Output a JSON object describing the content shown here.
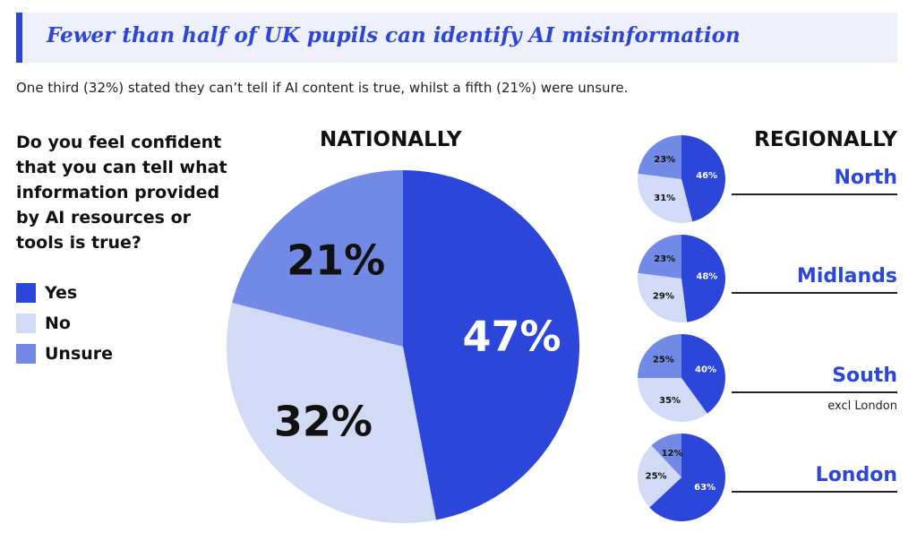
{
  "header": {
    "title": "Fewer than half of UK pupils can identify AI misinformation",
    "subtitle": "One third (32%) stated they can’t tell if AI content is true, whilst a fifth (21%) were unsure."
  },
  "question": "Do you feel confident that you can tell what information provided by AI resources or tools is true?",
  "legend": [
    {
      "label": "Yes",
      "color": "#2b46d9"
    },
    {
      "label": "No",
      "color": "#d2daf6"
    },
    {
      "label": "Unsure",
      "color": "#7289e6"
    }
  ],
  "headings": {
    "national": "NATIONALLY",
    "regional": "REGIONALLY"
  },
  "regions": {
    "north": {
      "name": "North"
    },
    "midlands": {
      "name": "Midlands"
    },
    "south": {
      "name": "South",
      "note": "excl London"
    },
    "london": {
      "name": "London"
    }
  },
  "chart_data": [
    {
      "type": "pie",
      "title": "NATIONALLY",
      "categories": [
        "Yes",
        "No",
        "Unsure"
      ],
      "values": [
        47,
        32,
        21
      ],
      "labels": [
        "47%",
        "32%",
        "21%"
      ]
    },
    {
      "type": "pie",
      "title": "North",
      "categories": [
        "Yes",
        "No",
        "Unsure"
      ],
      "values": [
        46,
        31,
        23
      ],
      "labels": [
        "46%",
        "31%",
        "23%"
      ]
    },
    {
      "type": "pie",
      "title": "Midlands",
      "categories": [
        "Yes",
        "No",
        "Unsure"
      ],
      "values": [
        48,
        29,
        23
      ],
      "labels": [
        "48%",
        "29%",
        "23%"
      ]
    },
    {
      "type": "pie",
      "title": "South",
      "categories": [
        "Yes",
        "No",
        "Unsure"
      ],
      "values": [
        40,
        35,
        25
      ],
      "labels": [
        "40%",
        "35%",
        "25%"
      ]
    },
    {
      "type": "pie",
      "title": "London",
      "categories": [
        "Yes",
        "No",
        "Unsure"
      ],
      "values": [
        63,
        25,
        12
      ],
      "labels": [
        "63%",
        "25%",
        "12%"
      ]
    }
  ]
}
